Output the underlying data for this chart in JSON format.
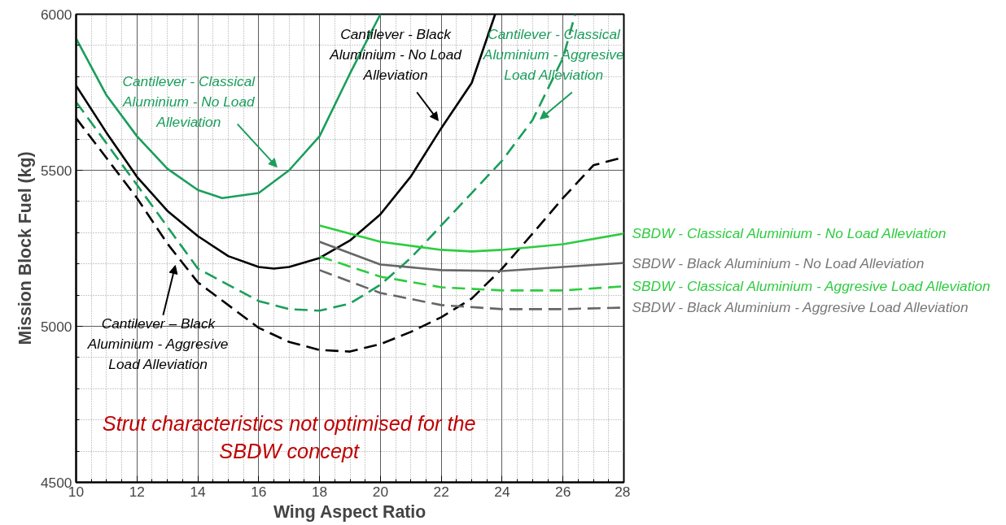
{
  "chart_data": {
    "type": "line",
    "xlabel": "Wing Aspect Ratio",
    "ylabel": "Mission Block Fuel (kg)",
    "xlim": [
      10,
      28
    ],
    "ylim": [
      4500,
      6000
    ],
    "xticks": [
      10,
      12,
      14,
      16,
      18,
      20,
      22,
      24,
      26,
      28
    ],
    "yticks": [
      4500,
      5000,
      5500,
      6000
    ],
    "grid": true,
    "marker": "none",
    "series": [
      {
        "name": "Cantilever - Classical Aluminium - No Load Alleviation",
        "color": "#1a9e5c",
        "line_style": "solid",
        "x": [
          10,
          11,
          12,
          13,
          14,
          14.8,
          16,
          17,
          18,
          19,
          20
        ],
        "values": [
          5922,
          5740,
          5609,
          5505,
          5437,
          5411,
          5427,
          5500,
          5609,
          5810,
          6000
        ]
      },
      {
        "name": "Cantilever - Black Aluminium - No Load Alleviation",
        "color": "#000000",
        "line_style": "solid",
        "x": [
          10,
          11,
          12,
          13,
          14,
          15,
          16,
          16.5,
          17,
          18,
          19,
          20,
          21,
          22,
          23,
          23.77
        ],
        "values": [
          5771,
          5620,
          5479,
          5370,
          5289,
          5225,
          5190,
          5185,
          5190,
          5219,
          5275,
          5359,
          5480,
          5635,
          5780,
          6000
        ]
      },
      {
        "name": "Cantilever - Classical Aluminium - Aggresive Load Alleviation",
        "color": "#1a9e5c",
        "line_style": "dashed",
        "x": [
          10,
          12,
          14,
          16,
          17,
          18,
          19,
          20,
          21,
          22,
          23,
          24,
          25,
          26,
          26.4
        ],
        "values": [
          5719,
          5453,
          5185,
          5081,
          5055,
          5050,
          5073,
          5133,
          5219,
          5323,
          5427,
          5531,
          5661,
          5860,
          6000
        ]
      },
      {
        "name": "Cantilever – Black Aluminium - Aggresive Load Alleviation",
        "color": "#000000",
        "line_style": "dashed",
        "x": [
          10,
          12,
          13,
          14,
          16,
          17,
          18,
          19,
          20,
          21,
          22,
          23,
          24,
          25,
          26,
          27,
          28
        ],
        "values": [
          5667,
          5411,
          5265,
          5141,
          4995,
          4950,
          4924,
          4919,
          4943,
          4982,
          5029,
          5089,
          5185,
          5297,
          5411,
          5516,
          5542
        ]
      },
      {
        "name": "SBDW - Classical Aluminium - No Load Alleviation",
        "color": "#2ecc40",
        "line_style": "solid",
        "x": [
          18,
          20,
          22,
          23,
          24,
          26,
          28
        ],
        "values": [
          5323,
          5271,
          5245,
          5240,
          5245,
          5263,
          5297
        ]
      },
      {
        "name": "SBDW - Black Aluminium - No Load Alleviation",
        "color": "#666666",
        "line_style": "solid",
        "x": [
          18,
          20,
          22,
          24,
          26,
          28
        ],
        "values": [
          5271,
          5198,
          5180,
          5177,
          5190,
          5203
        ]
      },
      {
        "name": "SBDW - Classical Aluminium - Aggresive Load Alleviation",
        "color": "#2ecc40",
        "line_style": "dashed",
        "x": [
          18,
          20,
          22,
          24,
          26,
          28
        ],
        "values": [
          5224,
          5159,
          5125,
          5115,
          5115,
          5128
        ]
      },
      {
        "name": "SBDW - Black Aluminium - Aggresive Load Alleviation",
        "color": "#666666",
        "line_style": "dashed",
        "x": [
          18,
          20,
          22,
          24,
          26,
          28
        ],
        "values": [
          5180,
          5107,
          5068,
          5055,
          5055,
          5060
        ]
      }
    ],
    "annotations": [
      "Strut characteristics not optimised for the SBDW concept"
    ]
  }
}
